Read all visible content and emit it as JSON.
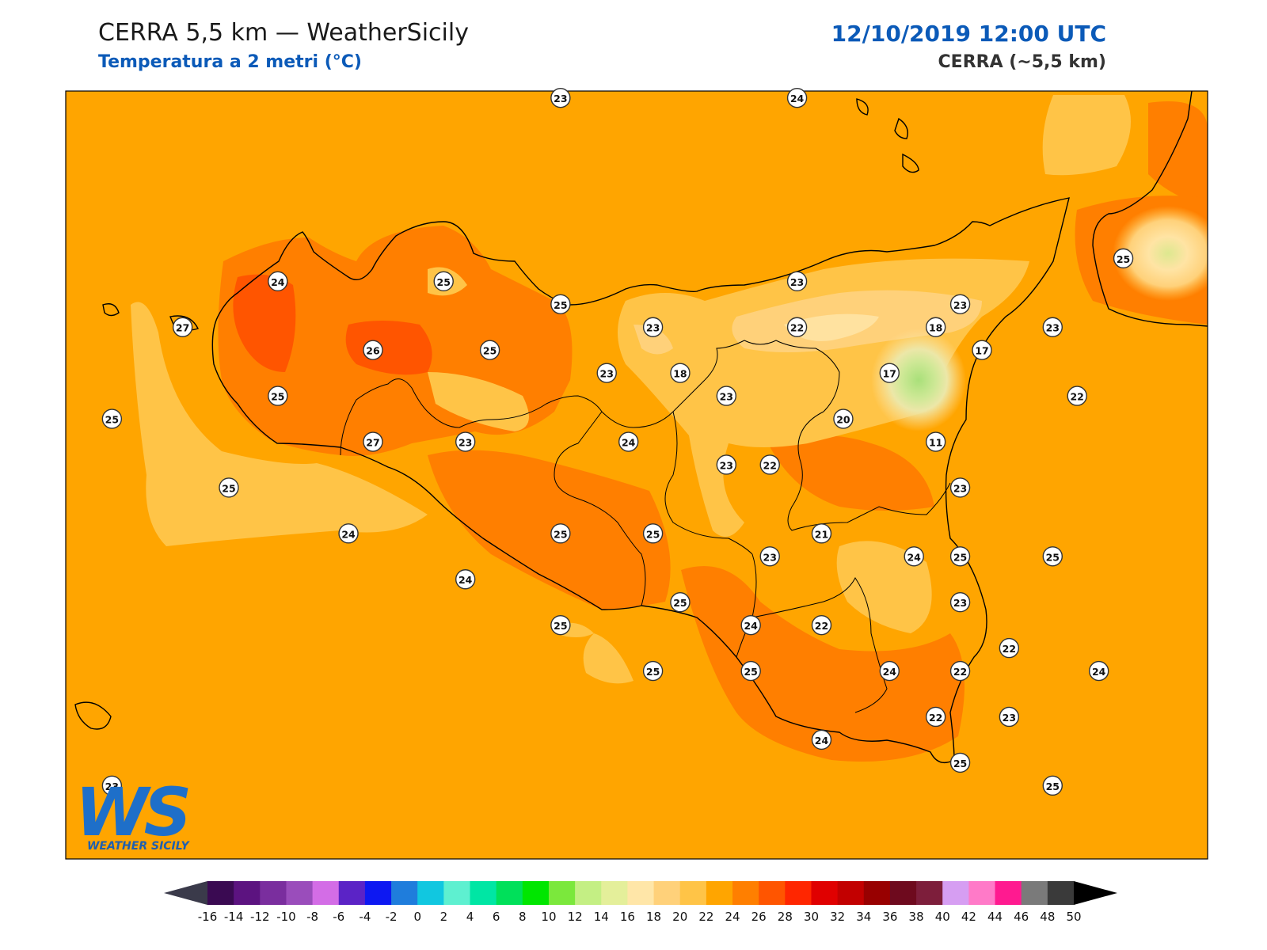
{
  "header": {
    "title": "CERRA 5,5 km — WeatherSicily",
    "subtitle": "Temperatura a 2 metri (°C)",
    "datetime": "12/10/2019 12:00 UTC",
    "model": "CERRA (~5,5 km)"
  },
  "logo": {
    "text_big": "WS",
    "text_small": "WEATHER SICILY"
  },
  "colors": {
    "background_field": "#ffa500",
    "outline": "#000000",
    "title_blue": "#0b5ab8"
  },
  "stations": [
    {
      "value": "23",
      "x": 13.62,
      "y": 38.92
    },
    {
      "value": "24",
      "x": 14.49,
      "y": 38.92
    },
    {
      "value": "24",
      "x": 12.58,
      "y": 38.12
    },
    {
      "value": "25",
      "x": 13.19,
      "y": 38.12
    },
    {
      "value": "25",
      "x": 13.62,
      "y": 38.02
    },
    {
      "value": "25",
      "x": 15.69,
      "y": 38.22
    },
    {
      "value": "23",
      "x": 14.49,
      "y": 38.12
    },
    {
      "value": "23",
      "x": 15.09,
      "y": 38.02
    },
    {
      "value": "27",
      "x": 12.23,
      "y": 37.92
    },
    {
      "value": "26",
      "x": 12.93,
      "y": 37.82
    },
    {
      "value": "25",
      "x": 13.36,
      "y": 37.82
    },
    {
      "value": "23",
      "x": 13.79,
      "y": 37.72
    },
    {
      "value": "23",
      "x": 13.96,
      "y": 37.92
    },
    {
      "value": "22",
      "x": 14.49,
      "y": 37.92
    },
    {
      "value": "18",
      "x": 15.0,
      "y": 37.92
    },
    {
      "value": "23",
      "x": 15.43,
      "y": 37.92
    },
    {
      "value": "18",
      "x": 14.06,
      "y": 37.72
    },
    {
      "value": "17",
      "x": 14.83,
      "y": 37.72
    },
    {
      "value": "17",
      "x": 15.17,
      "y": 37.82
    },
    {
      "value": "25",
      "x": 12.58,
      "y": 37.62
    },
    {
      "value": "25",
      "x": 11.97,
      "y": 37.52
    },
    {
      "value": "23",
      "x": 14.23,
      "y": 37.62
    },
    {
      "value": "22",
      "x": 15.52,
      "y": 37.62
    },
    {
      "value": "20",
      "x": 14.66,
      "y": 37.52
    },
    {
      "value": "27",
      "x": 12.93,
      "y": 37.42
    },
    {
      "value": "23",
      "x": 13.27,
      "y": 37.42
    },
    {
      "value": "24",
      "x": 13.87,
      "y": 37.42
    },
    {
      "value": "11",
      "x": 15.0,
      "y": 37.42
    },
    {
      "value": "23",
      "x": 14.23,
      "y": 37.32
    },
    {
      "value": "22",
      "x": 14.39,
      "y": 37.32
    },
    {
      "value": "25",
      "x": 12.4,
      "y": 37.22
    },
    {
      "value": "23",
      "x": 15.09,
      "y": 37.22
    },
    {
      "value": "24",
      "x": 12.84,
      "y": 37.02
    },
    {
      "value": "25",
      "x": 13.62,
      "y": 37.02
    },
    {
      "value": "25",
      "x": 13.96,
      "y": 37.02
    },
    {
      "value": "21",
      "x": 14.58,
      "y": 37.02
    },
    {
      "value": "23",
      "x": 14.39,
      "y": 36.92
    },
    {
      "value": "24",
      "x": 14.92,
      "y": 36.92
    },
    {
      "value": "25",
      "x": 15.09,
      "y": 36.92
    },
    {
      "value": "25",
      "x": 15.43,
      "y": 36.92
    },
    {
      "value": "24",
      "x": 13.27,
      "y": 36.82
    },
    {
      "value": "25",
      "x": 14.06,
      "y": 36.72
    },
    {
      "value": "23",
      "x": 15.09,
      "y": 36.72
    },
    {
      "value": "25",
      "x": 13.62,
      "y": 36.62
    },
    {
      "value": "24",
      "x": 14.32,
      "y": 36.62
    },
    {
      "value": "22",
      "x": 14.58,
      "y": 36.62
    },
    {
      "value": "22",
      "x": 15.27,
      "y": 36.52
    },
    {
      "value": "24",
      "x": 14.83,
      "y": 36.42
    },
    {
      "value": "22",
      "x": 15.09,
      "y": 36.42
    },
    {
      "value": "24",
      "x": 15.6,
      "y": 36.42
    },
    {
      "value": "25",
      "x": 13.96,
      "y": 36.42
    },
    {
      "value": "25",
      "x": 14.32,
      "y": 36.42
    },
    {
      "value": "22",
      "x": 15.0,
      "y": 36.22
    },
    {
      "value": "23",
      "x": 15.27,
      "y": 36.22
    },
    {
      "value": "24",
      "x": 14.58,
      "y": 36.12
    },
    {
      "value": "25",
      "x": 15.09,
      "y": 36.02
    },
    {
      "value": "25",
      "x": 15.43,
      "y": 35.92
    },
    {
      "value": "23",
      "x": 11.97,
      "y": 35.92
    }
  ],
  "colorbar": {
    "ticks": [
      "-16",
      "-14",
      "-12",
      "-10",
      "-8",
      "-6",
      "-4",
      "-2",
      "0",
      "2",
      "4",
      "6",
      "8",
      "10",
      "12",
      "14",
      "16",
      "18",
      "20",
      "22",
      "24",
      "26",
      "28",
      "30",
      "32",
      "34",
      "36",
      "38",
      "40",
      "42",
      "44",
      "46",
      "48",
      "50"
    ],
    "colors": [
      "#3a0a52",
      "#5c1380",
      "#7a2e9e",
      "#9a4dbb",
      "#d36de6",
      "#5b23c6",
      "#0d18f2",
      "#1f7ddc",
      "#11c7e0",
      "#5ef0d0",
      "#00e6a4",
      "#00e05a",
      "#00e600",
      "#7be83c",
      "#c4ef84",
      "#e4ef9a",
      "#ffe6a8",
      "#ffd17a",
      "#ffc447",
      "#ffa500",
      "#ff7f00",
      "#ff5500",
      "#ff2600",
      "#e00000",
      "#c20000",
      "#980000",
      "#6e0a1e",
      "#7d1e3b",
      "#d69ef2",
      "#ff7ac8",
      "#ff1a90",
      "#7a7a7a",
      "#3a3a3a"
    ]
  }
}
